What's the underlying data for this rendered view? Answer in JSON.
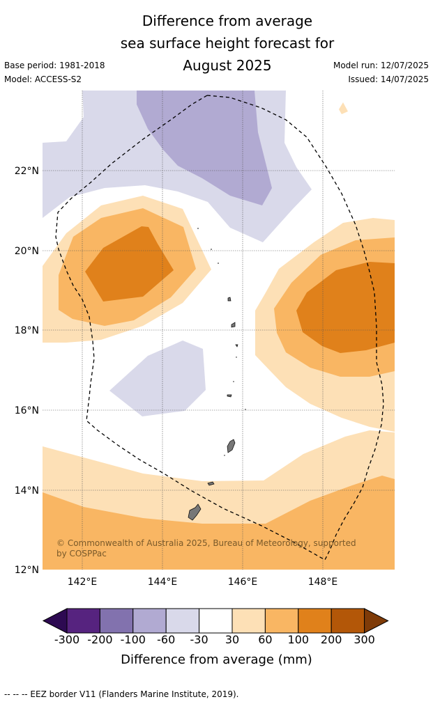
{
  "title": [
    "Difference from average",
    "sea surface height forecast for",
    "August 2025"
  ],
  "meta": {
    "base_period": "Base period: 1981-2018",
    "model": "Model: ACCESS-S2",
    "model_run": "Model run: 12/07/2025",
    "issued": "Issued: 14/07/2025"
  },
  "map": {
    "lat_labels": [
      "22°N",
      "20°N",
      "18°N",
      "16°N",
      "14°N",
      "12°N"
    ],
    "lon_labels": [
      "142°E",
      "144°E",
      "146°E",
      "148°E"
    ],
    "copyright": [
      "© Commonwealth of Australia 2025, Bureau of Meteorology, supported",
      "by COSPPac"
    ]
  },
  "colorbar": {
    "colors": [
      "#2d0a52",
      "#56237f",
      "#8272ae",
      "#b1aad2",
      "#d9d9ea",
      "#ffffff",
      "#fde0b6",
      "#f9b663",
      "#e0811b",
      "#b35708",
      "#7f3b08"
    ],
    "labels": [
      "-300",
      "-200",
      "-100",
      "-60",
      "-30",
      "30",
      "60",
      "100",
      "200",
      "300"
    ],
    "title": "Difference from average (mm)"
  },
  "footnote": "--  --  -- EEZ border V11 (Flanders Marine Institute, 2019)."
}
